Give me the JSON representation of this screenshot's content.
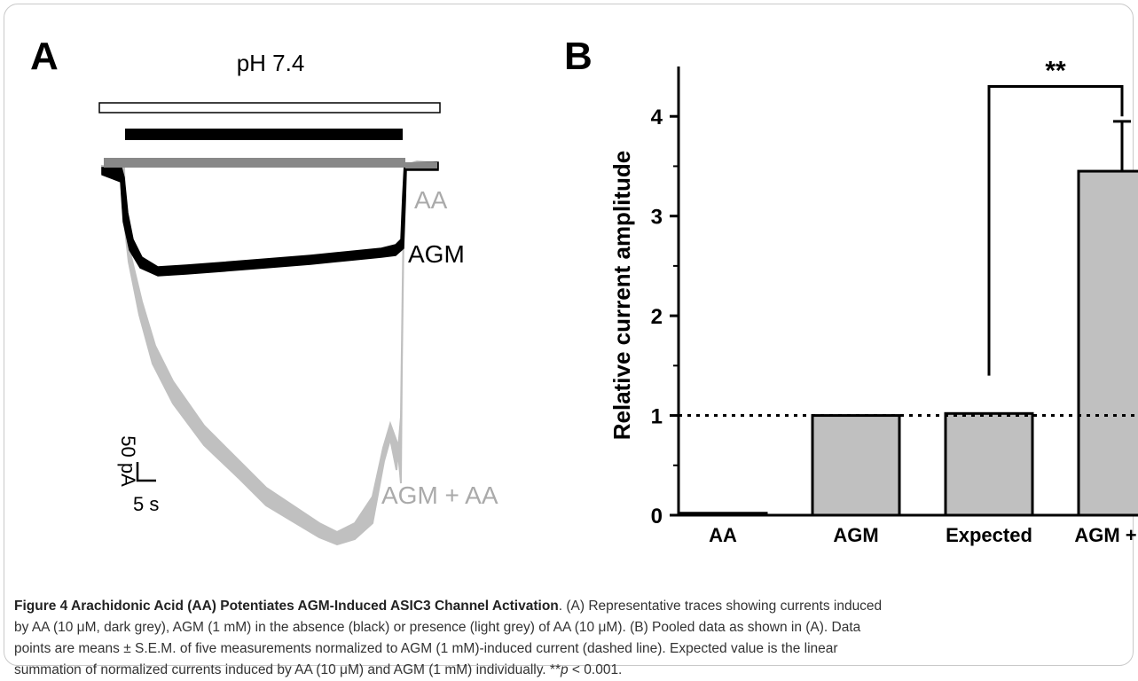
{
  "panels": {
    "a_label": "A",
    "b_label": "B"
  },
  "trace_panel": {
    "solution_label": "pH 7.4",
    "trace_labels": {
      "aa": "AA",
      "agm": "AGM",
      "agm_aa": "AGM + AA"
    },
    "scale_bar": {
      "current": "50 pA",
      "time": "5 s"
    },
    "colors": {
      "aa": "#888888",
      "agm": "#000000",
      "agm_aa": "#c0c0c0"
    }
  },
  "chart_data": {
    "type": "bar",
    "title": "",
    "xlabel": "",
    "ylabel": "Relative current amplitude",
    "categories": [
      "AA",
      "AGM",
      "Expected",
      "AGM + AA"
    ],
    "values": [
      0.02,
      1.0,
      1.02,
      3.45
    ],
    "errors": [
      0.0,
      0.0,
      0.0,
      0.5
    ],
    "ylim": [
      0,
      4.5
    ],
    "yticks": [
      0,
      1,
      2,
      3,
      4
    ],
    "reference_line": 1.0,
    "significance": {
      "from": "Expected",
      "to": "AGM + AA",
      "label": "**"
    },
    "bar_color": "#c0c0c0",
    "grid": false
  },
  "caption": {
    "label": "Figure 4 Arachidonic Acid (AA) Potentiates AGM-Induced ASIC3 Channel Activation",
    "line1": ". (A) Representative traces showing currents induced",
    "line2": "by AA (10 μM, dark grey), AGM (1 mM) in the absence (black) or presence (light grey) of AA (10 μM). (B) Pooled data as shown in (A). Data",
    "line3": "points are means ± S.E.M. of five measurements normalized to AGM (1 mM)-induced current (dashed line). Expected value is the linear",
    "line4_a": "summation of normalized currents induced by AA (10 μM) and AGM (1 mM) individually. **",
    "line4_p": "p",
    "line4_b": " < 0.001."
  }
}
